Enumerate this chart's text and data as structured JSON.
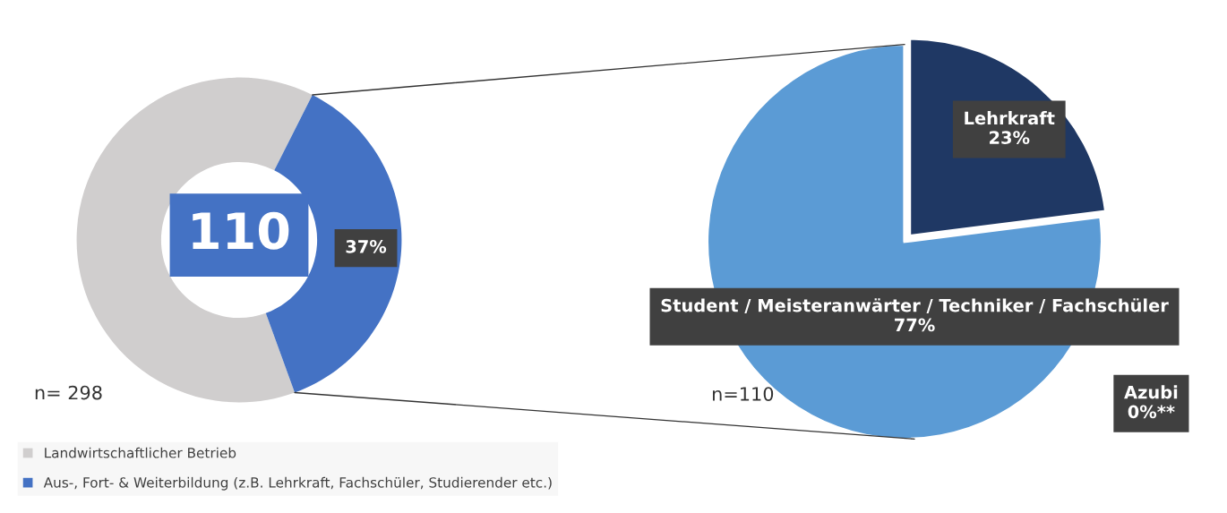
{
  "chart_data": [
    {
      "type": "donut",
      "categories": [
        "Landwirtschaftlicher Betrieb",
        "Aus-, Fort- & Weiterbildung (z.B. Lehrkraft, Fachschüler, Studierender etc.)"
      ],
      "values": [
        63,
        37
      ],
      "colors": [
        "#d0cece",
        "#4472c4"
      ],
      "value_labels": [
        null,
        "37%"
      ],
      "legend": "bottom",
      "annotations": [
        "110",
        "n= 298"
      ]
    },
    {
      "type": "pie",
      "categories": [
        "Lehrkraft",
        "Student / Meisteranwärter / Techniker / Fachschüler",
        "Azubi"
      ],
      "values": [
        23,
        77,
        0
      ],
      "colors": [
        "#1f3864",
        "#5b9bd5",
        "#264478"
      ],
      "value_labels": [
        "23%",
        "77%",
        "0%**"
      ],
      "annotations": [
        "n=110"
      ]
    }
  ]
}
